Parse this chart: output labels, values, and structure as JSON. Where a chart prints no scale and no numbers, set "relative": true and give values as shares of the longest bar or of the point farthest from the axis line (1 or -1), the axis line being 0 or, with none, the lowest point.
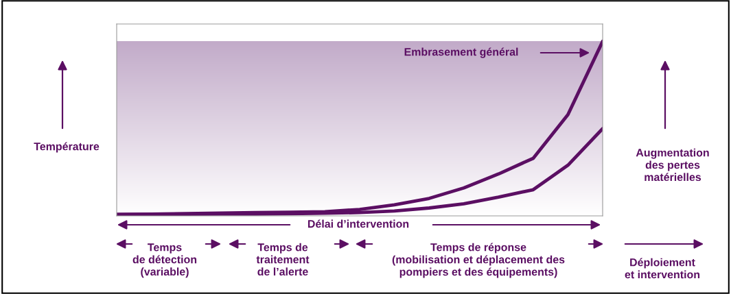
{
  "chart_data": {
    "type": "line",
    "relative": true,
    "ylabel": "Température",
    "categories": [
      null,
      null,
      null,
      null,
      null,
      null,
      null,
      null,
      null,
      null,
      null,
      null,
      null,
      null,
      null
    ],
    "series": [
      {
        "color": "#5b0f63",
        "values": [
          0.008,
          0.01,
          0.013,
          0.016,
          0.019,
          0.021,
          0.024,
          0.037,
          0.063,
          0.1,
          0.16,
          0.24,
          0.33,
          0.58,
          1.0
        ]
      },
      {
        "color": "#5b0f63",
        "values": [
          0.008,
          0.009,
          0.01,
          0.011,
          0.011,
          0.012,
          0.015,
          0.019,
          0.028,
          0.045,
          0.069,
          0.107,
          0.15,
          0.29,
          0.5
        ]
      }
    ],
    "annotations": [
      "Embrasement général",
      "Augmentation\ndes pertes\nmatérielles",
      "Délai d’intervention",
      "Temps\nde détection\n(variable)",
      "Temps de\ntraitement\nde l’alerte",
      "Temps de réponse\n(mobilisation et déplacement des\npompiers et des équipements)",
      "Déploiement\net intervention"
    ],
    "legend": false
  }
}
